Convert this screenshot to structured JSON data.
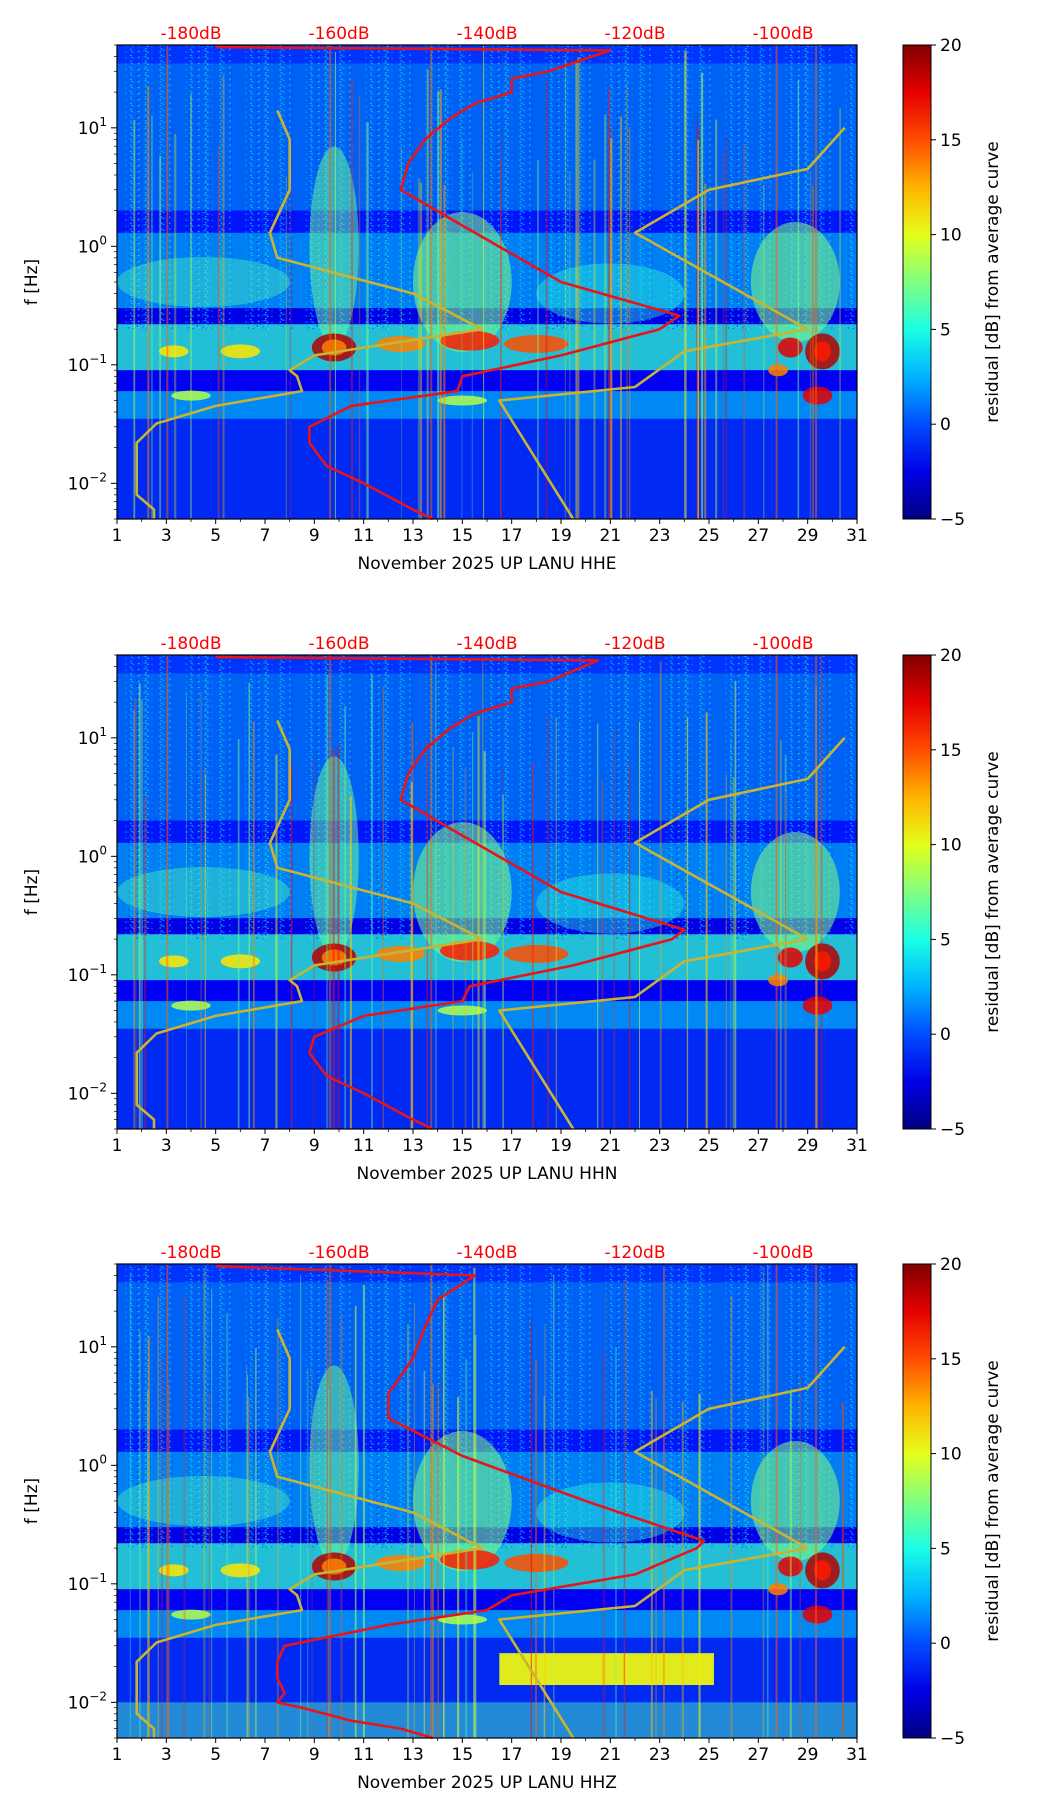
{
  "figure": {
    "colorbar_ticks": [
      "20",
      "15",
      "10",
      "5",
      "0",
      "−5"
    ],
    "colorbar_label": "residual [dB] from average curve",
    "y_ticks": [
      {
        "base": "10",
        "exp": "1",
        "value": 10
      },
      {
        "base": "10",
        "exp": "0",
        "value": 1
      },
      {
        "base": "10",
        "exp": "−1",
        "value": 0.1
      },
      {
        "base": "10",
        "exp": "−2",
        "value": 0.01
      }
    ],
    "x_ticks": [
      "1",
      "3",
      "5",
      "7",
      "9",
      "11",
      "13",
      "15",
      "17",
      "19",
      "21",
      "23",
      "25",
      "27",
      "29",
      "31"
    ],
    "db_labels": [
      "-180dB",
      "-160dB",
      "-140dB",
      "-120dB",
      "-100dB"
    ],
    "ylabel": "f [Hz]",
    "colors": {
      "median_curve": "#e8141c",
      "noise_model": "#c8b432",
      "db_label": "#ff0000"
    }
  },
  "chart_data": [
    {
      "type": "heatmap",
      "title": "",
      "xlabel": "November 2025 UP LANU  HHE",
      "ylabel": "f [Hz]",
      "xlim": [
        1,
        31
      ],
      "ylim": [
        0.005,
        50
      ],
      "yscale": "log",
      "colorbar": {
        "label": "residual [dB] from average curve",
        "range": [
          -5,
          20
        ],
        "colormap": "jet"
      },
      "top_axis": {
        "labels": [
          "-180dB",
          "-160dB",
          "-140dB",
          "-120dB",
          "-100dB"
        ],
        "values": [
          -180,
          -160,
          -140,
          -120,
          -100
        ]
      },
      "noise_model_low": [
        [
          2.5,
          0.005
        ],
        [
          2.5,
          0.006
        ],
        [
          1.8,
          0.008
        ],
        [
          1.8,
          0.014
        ],
        [
          1.8,
          0.022
        ],
        [
          2.6,
          0.032
        ],
        [
          5,
          0.045
        ],
        [
          8.5,
          0.06
        ],
        [
          8.3,
          0.08
        ],
        [
          8,
          0.09
        ],
        [
          9,
          0.12
        ],
        [
          15.8,
          0.2
        ],
        [
          13,
          0.4
        ],
        [
          7.5,
          0.8
        ],
        [
          7.2,
          1.3
        ],
        [
          8,
          3
        ],
        [
          8,
          8
        ],
        [
          7.5,
          14
        ]
      ],
      "noise_model_high": [
        [
          19.5,
          0.005
        ],
        [
          16.5,
          0.05
        ],
        [
          22,
          0.065
        ],
        [
          24,
          0.13
        ],
        [
          29,
          0.2
        ],
        [
          22,
          1.3
        ],
        [
          25,
          3
        ],
        [
          29,
          4.5
        ],
        [
          30.5,
          10
        ]
      ],
      "median_curve": [
        [
          13.8,
          0.005
        ],
        [
          13,
          0.006
        ],
        [
          11,
          0.01
        ],
        [
          9.5,
          0.014
        ],
        [
          8.8,
          0.022
        ],
        [
          8.8,
          0.03
        ],
        [
          10.5,
          0.045
        ],
        [
          14.8,
          0.06
        ],
        [
          15,
          0.08
        ],
        [
          19,
          0.12
        ],
        [
          23,
          0.2
        ],
        [
          23.8,
          0.26
        ],
        [
          19,
          0.5
        ],
        [
          15,
          1.5
        ],
        [
          12.5,
          3
        ],
        [
          12.8,
          5
        ],
        [
          13.5,
          8
        ],
        [
          14.5,
          12
        ],
        [
          15.5,
          16
        ],
        [
          17,
          20
        ],
        [
          17,
          26
        ],
        [
          18.5,
          30
        ],
        [
          21,
          45
        ],
        [
          5,
          48
        ]
      ]
    },
    {
      "type": "heatmap",
      "title": "",
      "xlabel": "November 2025 UP LANU  HHN",
      "ylabel": "f [Hz]",
      "xlim": [
        1,
        31
      ],
      "ylim": [
        0.005,
        50
      ],
      "yscale": "log",
      "colorbar": {
        "label": "residual [dB] from average curve",
        "range": [
          -5,
          20
        ],
        "colormap": "jet"
      },
      "top_axis": {
        "labels": [
          "-180dB",
          "-160dB",
          "-140dB",
          "-120dB",
          "-100dB"
        ],
        "values": [
          -180,
          -160,
          -140,
          -120,
          -100
        ]
      },
      "noise_model_low": [
        [
          2.5,
          0.005
        ],
        [
          2.5,
          0.006
        ],
        [
          1.8,
          0.008
        ],
        [
          1.8,
          0.014
        ],
        [
          1.8,
          0.022
        ],
        [
          2.6,
          0.032
        ],
        [
          5,
          0.045
        ],
        [
          8.5,
          0.06
        ],
        [
          8.3,
          0.08
        ],
        [
          8,
          0.09
        ],
        [
          9,
          0.12
        ],
        [
          15.8,
          0.2
        ],
        [
          13,
          0.4
        ],
        [
          7.5,
          0.8
        ],
        [
          7.2,
          1.3
        ],
        [
          8,
          3
        ],
        [
          8,
          8
        ],
        [
          7.5,
          14
        ]
      ],
      "noise_model_high": [
        [
          19.5,
          0.005
        ],
        [
          16.5,
          0.05
        ],
        [
          22,
          0.065
        ],
        [
          24,
          0.13
        ],
        [
          29,
          0.2
        ],
        [
          22,
          1.3
        ],
        [
          25,
          3
        ],
        [
          29,
          4.5
        ],
        [
          30.5,
          10
        ]
      ],
      "median_curve": [
        [
          13.8,
          0.005
        ],
        [
          13,
          0.006
        ],
        [
          11,
          0.01
        ],
        [
          9.5,
          0.014
        ],
        [
          8.8,
          0.022
        ],
        [
          9,
          0.03
        ],
        [
          11,
          0.045
        ],
        [
          15,
          0.06
        ],
        [
          15.3,
          0.08
        ],
        [
          19.5,
          0.12
        ],
        [
          23.5,
          0.2
        ],
        [
          24,
          0.24
        ],
        [
          19,
          0.5
        ],
        [
          15,
          1.5
        ],
        [
          12.5,
          3
        ],
        [
          12.8,
          5
        ],
        [
          13.5,
          8
        ],
        [
          14.5,
          12
        ],
        [
          15.5,
          16
        ],
        [
          17,
          20
        ],
        [
          17,
          26
        ],
        [
          18.5,
          30
        ],
        [
          20.5,
          45
        ],
        [
          5,
          48
        ]
      ]
    },
    {
      "type": "heatmap",
      "title": "",
      "xlabel": "November 2025 UP LANU  HHZ",
      "ylabel": "f [Hz]",
      "xlim": [
        1,
        31
      ],
      "ylim": [
        0.005,
        50
      ],
      "yscale": "log",
      "colorbar": {
        "label": "residual [dB] from average curve",
        "range": [
          -5,
          20
        ],
        "colormap": "jet"
      },
      "top_axis": {
        "labels": [
          "-180dB",
          "-160dB",
          "-140dB",
          "-120dB",
          "-100dB"
        ],
        "values": [
          -180,
          -160,
          -140,
          -120,
          -100
        ]
      },
      "noise_model_low": [
        [
          2.5,
          0.005
        ],
        [
          2.5,
          0.006
        ],
        [
          1.8,
          0.008
        ],
        [
          1.8,
          0.014
        ],
        [
          1.8,
          0.022
        ],
        [
          2.6,
          0.032
        ],
        [
          5,
          0.045
        ],
        [
          8.5,
          0.06
        ],
        [
          8.3,
          0.08
        ],
        [
          8,
          0.09
        ],
        [
          9,
          0.12
        ],
        [
          15.8,
          0.2
        ],
        [
          13,
          0.4
        ],
        [
          7.5,
          0.8
        ],
        [
          7.2,
          1.3
        ],
        [
          8,
          3
        ],
        [
          8,
          8
        ],
        [
          7.5,
          14
        ]
      ],
      "noise_model_high": [
        [
          19.5,
          0.005
        ],
        [
          16.5,
          0.05
        ],
        [
          22,
          0.065
        ],
        [
          24,
          0.13
        ],
        [
          29,
          0.2
        ],
        [
          22,
          1.3
        ],
        [
          25,
          3
        ],
        [
          29,
          4.5
        ],
        [
          30.5,
          10
        ]
      ],
      "median_curve": [
        [
          13.8,
          0.005
        ],
        [
          12.5,
          0.006
        ],
        [
          10.5,
          0.007
        ],
        [
          8.5,
          0.009
        ],
        [
          7.5,
          0.01
        ],
        [
          7.8,
          0.012
        ],
        [
          7.5,
          0.016
        ],
        [
          7.5,
          0.022
        ],
        [
          7.8,
          0.03
        ],
        [
          12,
          0.045
        ],
        [
          16,
          0.06
        ],
        [
          17,
          0.08
        ],
        [
          22,
          0.12
        ],
        [
          24.5,
          0.2
        ],
        [
          24.8,
          0.23
        ],
        [
          20,
          0.5
        ],
        [
          15,
          1.2
        ],
        [
          12,
          2.5
        ],
        [
          12,
          4
        ],
        [
          13,
          8
        ],
        [
          13.5,
          15
        ],
        [
          14,
          25
        ],
        [
          15.5,
          40
        ],
        [
          5,
          48
        ]
      ]
    }
  ]
}
